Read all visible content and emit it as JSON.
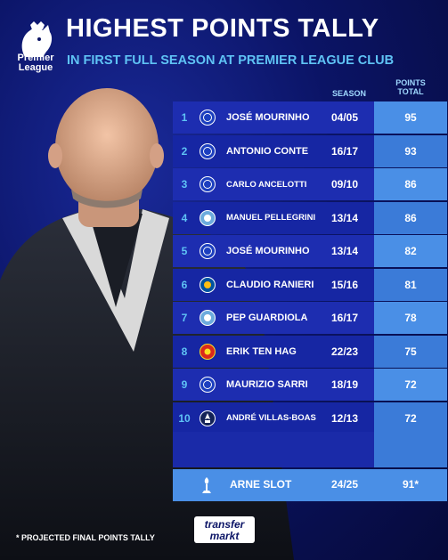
{
  "brand": {
    "line1": "Premier",
    "line2": "League"
  },
  "title": "HIGHEST POINTS TALLY",
  "subtitle": "IN FIRST FULL SEASON AT PREMIER LEAGUE CLUB",
  "headers": {
    "season": "SEASON",
    "points_line1": "POINTS",
    "points_line2": "TOTAL"
  },
  "rows": [
    {
      "rank": "1",
      "club": "chelsea",
      "name": "JOSÉ MOURINHO",
      "season": "04/05",
      "points": "95"
    },
    {
      "rank": "2",
      "club": "chelsea",
      "name": "ANTONIO CONTE",
      "season": "16/17",
      "points": "93"
    },
    {
      "rank": "3",
      "club": "chelsea",
      "name": "CARLO ANCELOTTI",
      "season": "09/10",
      "points": "86"
    },
    {
      "rank": "4",
      "club": "man-city",
      "name": "MANUEL PELLEGRINI",
      "season": "13/14",
      "points": "86"
    },
    {
      "rank": "5",
      "club": "chelsea",
      "name": "JOSÉ MOURINHO",
      "season": "13/14",
      "points": "82"
    },
    {
      "rank": "6",
      "club": "leicester",
      "name": "CLAUDIO RANIERI",
      "season": "15/16",
      "points": "81"
    },
    {
      "rank": "7",
      "club": "man-city",
      "name": "PEP GUARDIOLA",
      "season": "16/17",
      "points": "78"
    },
    {
      "rank": "8",
      "club": "man-united",
      "name": "ERIK TEN HAG",
      "season": "22/23",
      "points": "75"
    },
    {
      "rank": "9",
      "club": "chelsea",
      "name": "MAURIZIO SARRI",
      "season": "18/19",
      "points": "72"
    },
    {
      "rank": "10",
      "club": "tottenham",
      "name": "ANDRÉ VILLAS-BOAS",
      "season": "12/13",
      "points": "72"
    }
  ],
  "highlight": {
    "club": "liverpool",
    "name": "ARNE SLOT",
    "season": "24/25",
    "points": "91*"
  },
  "footnote": "* PROJECTED FINAL POINTS TALLY",
  "source_logo": {
    "line1": "transfer",
    "line2": "markt"
  },
  "colors": {
    "accent": "#5fc3f5",
    "navy": "#0b1466",
    "chelsea": "#1c3fbf",
    "city": "#6cabdd",
    "united": "#da291c",
    "leicester": "#0053a0"
  }
}
